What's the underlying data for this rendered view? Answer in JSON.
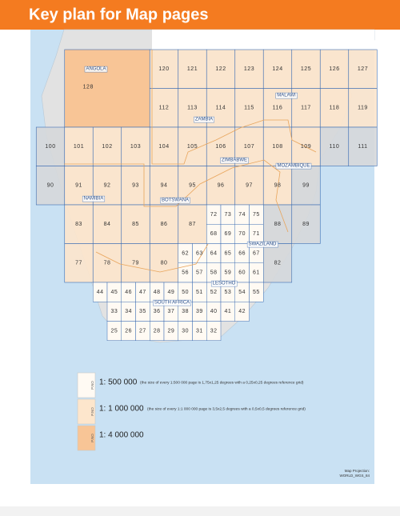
{
  "header": {
    "title": "Key plan for Map pages"
  },
  "map": {
    "sheets_1_4000000": [
      "128"
    ],
    "sheets_1_1000000": [
      "120",
      "121",
      "122",
      "123",
      "124",
      "125",
      "126",
      "127",
      "112",
      "113",
      "114",
      "115",
      "116",
      "117",
      "118",
      "119",
      "100",
      "101",
      "102",
      "103",
      "104",
      "105",
      "106",
      "107",
      "108",
      "109",
      "110",
      "111",
      "90",
      "91",
      "92",
      "93",
      "94",
      "95",
      "96",
      "97",
      "98",
      "99",
      "83",
      "84",
      "85",
      "86",
      "87",
      "88",
      "89",
      "77",
      "78",
      "79",
      "80",
      "82"
    ],
    "sheets_1_500000": [
      "72",
      "73",
      "74",
      "75",
      "68",
      "69",
      "70",
      "71",
      "62",
      "63",
      "64",
      "65",
      "66",
      "67",
      "56",
      "57",
      "58",
      "59",
      "60",
      "61",
      "44",
      "45",
      "46",
      "47",
      "48",
      "49",
      "50",
      "51",
      "52",
      "53",
      "54",
      "55",
      "33",
      "34",
      "35",
      "36",
      "37",
      "38",
      "39",
      "40",
      "41",
      "42",
      "25",
      "26",
      "27",
      "28",
      "29",
      "30",
      "31",
      "32"
    ],
    "countries": [
      "ANGOLA",
      "ZAMBIA",
      "MALAWI",
      "ZIMBABWE",
      "MOZAMBIQUE",
      "NAMIBIA",
      "BOTSWANA",
      "SWAZILAND",
      "LESOTHO",
      "SOUTH AFRICA"
    ],
    "projection": [
      "Map Projection:",
      "WORLD_WGS_84"
    ]
  },
  "legend": [
    {
      "marker": "P.NO",
      "scale": "1: 500 000",
      "note": "(the size of every 1:500 000 page is 1,75x1,25 degrees with a 0,25x0,25 degrees reference grid)"
    },
    {
      "marker": "P.NO",
      "scale": "1: 1 000 000",
      "note": "(the size of every 1:1 000 000 page is 3,5x2,5 degrees with a 0,5x0,5 degrees reference grid)"
    },
    {
      "marker": "P.NO",
      "scale": "1: 4 000 000"
    }
  ]
}
